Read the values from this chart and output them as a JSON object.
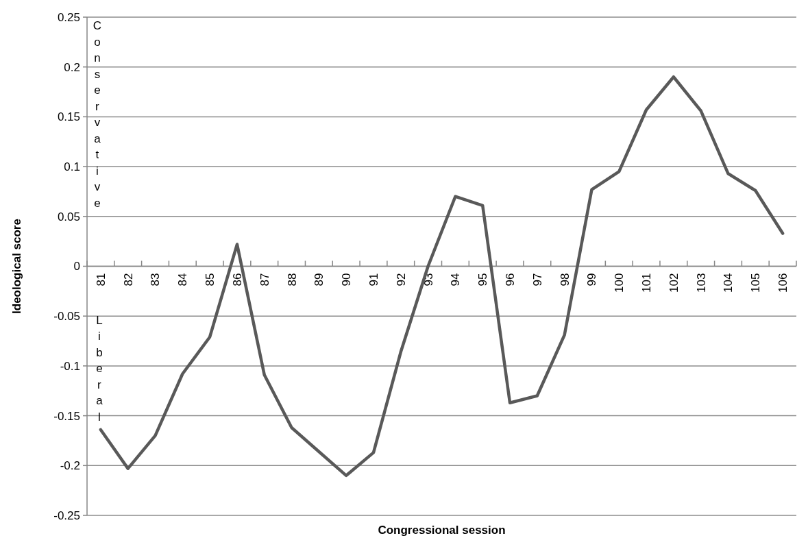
{
  "chart_data": {
    "type": "line",
    "xlabel": "Congressional session",
    "ylabel": "Ideological score",
    "categories": [
      "81",
      "82",
      "83",
      "84",
      "85",
      "86",
      "87",
      "88",
      "89",
      "90",
      "91",
      "92",
      "93",
      "94",
      "95",
      "96",
      "97",
      "98",
      "99",
      "100",
      "101",
      "102",
      "103",
      "104",
      "105",
      "106"
    ],
    "series": [
      {
        "color": "#595959",
        "values": [
          -0.164,
          -0.203,
          -0.17,
          -0.108,
          -0.071,
          0.022,
          -0.109,
          -0.162,
          -0.186,
          -0.21,
          -0.187,
          -0.086,
          0.0,
          0.07,
          0.061,
          -0.137,
          -0.13,
          -0.069,
          0.077,
          0.095,
          0.157,
          0.19,
          0.156,
          0.093,
          0.076,
          0.033
        ]
      }
    ],
    "ylim": [
      -0.25,
      0.25
    ],
    "yticks": [
      -0.25,
      -0.2,
      -0.15,
      -0.1,
      -0.05,
      0,
      0.05,
      0.1,
      0.15,
      0.2,
      0.25
    ],
    "grid": "y",
    "marker": "none",
    "line_style": "solid",
    "annotations": [
      "Conservative",
      "Liberal"
    ]
  }
}
